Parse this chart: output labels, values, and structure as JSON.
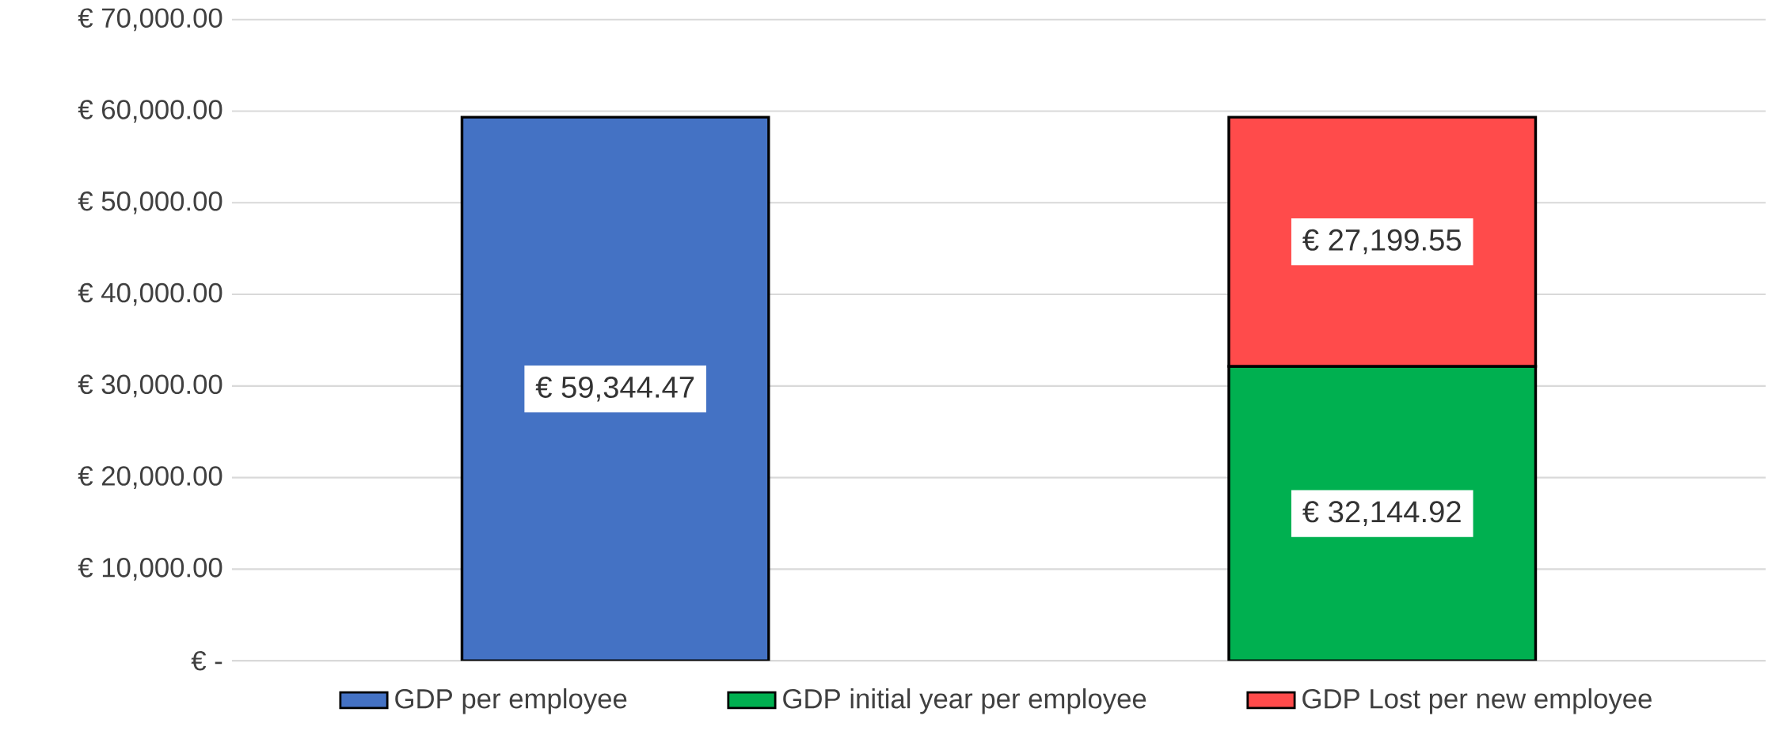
{
  "chart_data": {
    "type": "bar",
    "stacked": true,
    "categories": [
      null,
      null
    ],
    "series": [
      {
        "name": "GDP per employee",
        "color": "#4472c4",
        "values": [
          59344.47,
          null
        ],
        "value_labels": [
          "€ 59,344.47",
          null
        ]
      },
      {
        "name": "GDP initial year per employee",
        "color": "#00b050",
        "values": [
          null,
          32144.92
        ],
        "value_labels": [
          null,
          "€ 32,144.92"
        ]
      },
      {
        "name": "GDP Lost per new employee",
        "color": "#ff4b4b",
        "values": [
          null,
          27199.55
        ],
        "value_labels": [
          null,
          "€ 27,199.55"
        ]
      }
    ],
    "ylim": [
      0,
      70000
    ],
    "yticks": [
      {
        "value": 0,
        "label": "€ -"
      },
      {
        "value": 10000,
        "label": "€ 10,000.00"
      },
      {
        "value": 20000,
        "label": "€ 20,000.00"
      },
      {
        "value": 30000,
        "label": "€ 30,000.00"
      },
      {
        "value": 40000,
        "label": "€ 40,000.00"
      },
      {
        "value": 50000,
        "label": "€ 50,000.00"
      },
      {
        "value": 60000,
        "label": "€ 60,000.00"
      },
      {
        "value": 70000,
        "label": "€ 70,000.00"
      }
    ],
    "grid": "y",
    "legend": "bottom",
    "tick_labels": "y"
  }
}
